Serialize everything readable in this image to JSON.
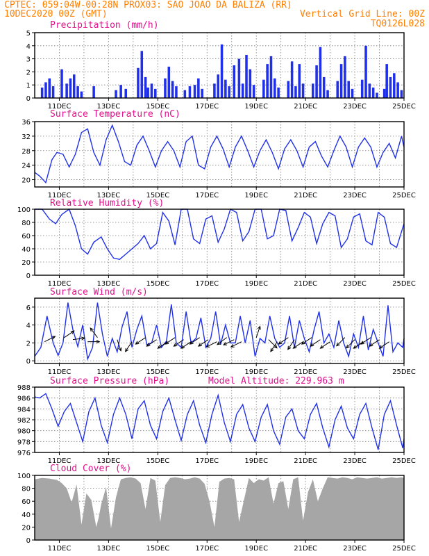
{
  "header": {
    "line1_left": "CPTEC:  059:04W-00:28N  PROX03: SAO JOAO DA BALIZA (RR)",
    "line2_left": "10DEC2020 00Z (GMT)",
    "line2_right": "Vertical Grid Line: 00Z",
    "line3_right": "TQ0126L028"
  },
  "colors": {
    "header_text": "#ff7f00",
    "panel_title": "#e0108a",
    "series_line": "#2030e8",
    "cloud_fill": "#a6a6a6",
    "wind_arrow": "#000000"
  },
  "chart_data": [
    {
      "type": "bar",
      "title": "Precipitation (mm/h)",
      "x_tick_labels": [
        "11DEC",
        "13DEC",
        "15DEC",
        "17DEC",
        "19DEC",
        "21DEC",
        "23DEC",
        "25DEC"
      ],
      "x_range_days": [
        10,
        25
      ],
      "ylim": [
        0,
        5
      ],
      "y_ticks": [
        0,
        1,
        2,
        3,
        4,
        5
      ],
      "x": [
        10.3,
        10.45,
        10.6,
        10.75,
        11.1,
        11.3,
        11.45,
        11.6,
        11.75,
        11.9,
        12.4,
        13.3,
        13.5,
        13.7,
        14.2,
        14.35,
        14.5,
        14.6,
        14.75,
        14.9,
        15.3,
        15.45,
        15.6,
        15.75,
        16.1,
        16.3,
        16.5,
        16.65,
        16.8,
        17.3,
        17.45,
        17.6,
        17.75,
        17.9,
        18.1,
        18.3,
        18.45,
        18.6,
        18.75,
        18.9,
        19.3,
        19.45,
        19.6,
        19.75,
        19.9,
        20.3,
        20.45,
        20.6,
        20.75,
        20.9,
        21.3,
        21.45,
        21.6,
        21.75,
        21.9,
        22.3,
        22.45,
        22.6,
        22.75,
        22.9,
        23.3,
        23.45,
        23.6,
        23.75,
        23.9,
        24.2,
        24.3,
        24.45,
        24.6,
        24.75,
        24.9
      ],
      "values": [
        0.8,
        1.2,
        1.5,
        0.9,
        2.2,
        1.1,
        1.5,
        1.8,
        0.9,
        0.5,
        0.9,
        0.6,
        1.0,
        0.7,
        2.3,
        3.6,
        1.6,
        0.8,
        1.1,
        0.7,
        1.5,
        2.4,
        1.3,
        0.9,
        0.6,
        0.9,
        1.0,
        1.5,
        0.7,
        1.1,
        1.8,
        4.1,
        1.4,
        0.9,
        2.5,
        3.0,
        1.1,
        3.3,
        2.2,
        1.0,
        1.4,
        2.6,
        3.2,
        1.5,
        0.8,
        1.3,
        2.8,
        0.9,
        2.6,
        1.1,
        1.1,
        2.5,
        3.9,
        1.6,
        0.6,
        1.3,
        2.6,
        3.2,
        1.3,
        0.7,
        1.4,
        4.0,
        1.1,
        0.8,
        0.4,
        0.7,
        2.6,
        1.6,
        1.9,
        1.2,
        0.6
      ]
    },
    {
      "type": "line",
      "title": "Surface Temperature (nC)",
      "x_tick_labels": [
        "11DEC",
        "13DEC",
        "15DEC",
        "17DEC",
        "19DEC",
        "21DEC",
        "23DEC",
        "25DEC"
      ],
      "x_range_days": [
        10,
        25
      ],
      "ylim": [
        18,
        36
      ],
      "y_ticks": [
        20,
        24,
        28,
        32,
        36
      ],
      "x": [
        10.0,
        10.2,
        10.45,
        10.7,
        10.9,
        11.15,
        11.4,
        11.65,
        11.9,
        12.15,
        12.4,
        12.65,
        12.9,
        13.15,
        13.4,
        13.65,
        13.9,
        14.15,
        14.4,
        14.65,
        14.9,
        15.15,
        15.4,
        15.65,
        15.9,
        16.15,
        16.4,
        16.65,
        16.9,
        17.15,
        17.4,
        17.65,
        17.9,
        18.15,
        18.4,
        18.65,
        18.9,
        19.15,
        19.4,
        19.65,
        19.9,
        20.15,
        20.4,
        20.65,
        20.9,
        21.15,
        21.4,
        21.65,
        21.9,
        22.15,
        22.4,
        22.65,
        22.9,
        23.15,
        23.4,
        23.65,
        23.9,
        24.15,
        24.4,
        24.65,
        24.9,
        25.0
      ],
      "y": [
        22.0,
        21.0,
        19.2,
        25.5,
        27.5,
        27.0,
        23.5,
        27.0,
        33.0,
        34.0,
        27.5,
        24.0,
        31.0,
        35.0,
        30.5,
        25.0,
        24.0,
        29.5,
        32.0,
        28.0,
        23.5,
        28.0,
        30.5,
        28.0,
        23.5,
        30.5,
        32.0,
        24.0,
        23.0,
        29.0,
        32.0,
        28.5,
        23.5,
        29.0,
        32.0,
        28.0,
        23.5,
        28.0,
        31.0,
        27.5,
        23.0,
        28.5,
        31.0,
        28.0,
        23.5,
        29.0,
        30.5,
        26.5,
        23.5,
        28.0,
        32.0,
        29.0,
        23.5,
        29.0,
        31.5,
        29.0,
        23.5,
        27.5,
        30.0,
        26.0,
        32.0,
        29.0
      ]
    },
    {
      "type": "line",
      "title": "Relative Humidity (%)",
      "x_tick_labels": [
        "11DEC",
        "13DEC",
        "15DEC",
        "17DEC",
        "19DEC",
        "21DEC",
        "23DEC",
        "25DEC"
      ],
      "x_range_days": [
        10,
        25
      ],
      "ylim": [
        0,
        100
      ],
      "y_ticks": [
        0,
        20,
        40,
        60,
        80,
        100
      ],
      "x": [
        10.0,
        10.3,
        10.6,
        10.85,
        11.1,
        11.4,
        11.65,
        11.9,
        12.15,
        12.4,
        12.7,
        12.95,
        13.2,
        13.45,
        13.7,
        13.95,
        14.2,
        14.45,
        14.7,
        14.95,
        15.2,
        15.45,
        15.7,
        15.95,
        16.2,
        16.45,
        16.7,
        16.95,
        17.2,
        17.45,
        17.7,
        17.95,
        18.2,
        18.45,
        18.7,
        18.95,
        19.2,
        19.45,
        19.7,
        19.95,
        20.2,
        20.45,
        20.7,
        20.95,
        21.2,
        21.45,
        21.7,
        21.95,
        22.2,
        22.45,
        22.7,
        22.95,
        23.2,
        23.45,
        23.7,
        23.95,
        24.2,
        24.45,
        24.7,
        24.95,
        25.0
      ],
      "y": [
        100,
        100,
        85,
        78,
        92,
        100,
        75,
        40,
        32,
        50,
        58,
        40,
        26,
        24,
        32,
        40,
        48,
        60,
        40,
        48,
        95,
        82,
        46,
        100,
        100,
        55,
        48,
        85,
        90,
        50,
        70,
        100,
        95,
        52,
        66,
        100,
        100,
        55,
        60,
        100,
        98,
        52,
        72,
        95,
        88,
        48,
        78,
        95,
        90,
        42,
        55,
        88,
        93,
        52,
        46,
        95,
        88,
        48,
        42,
        72,
        78
      ]
    },
    {
      "type": "line",
      "title": "Surface Wind (m/s)",
      "x_tick_labels": [
        "11DEC",
        "13DEC",
        "15DEC",
        "17DEC",
        "19DEC",
        "21DEC",
        "23DEC",
        "25DEC"
      ],
      "x_range_days": [
        10,
        25
      ],
      "ylim": [
        -0.3,
        7
      ],
      "y_ticks": [
        0,
        2,
        4,
        6
      ],
      "x": [
        10.0,
        10.25,
        10.5,
        10.75,
        10.95,
        11.15,
        11.35,
        11.55,
        11.75,
        11.95,
        12.15,
        12.35,
        12.55,
        12.75,
        12.95,
        13.15,
        13.35,
        13.55,
        13.75,
        13.95,
        14.15,
        14.35,
        14.55,
        14.75,
        14.95,
        15.15,
        15.35,
        15.55,
        15.75,
        15.95,
        16.15,
        16.35,
        16.55,
        16.75,
        16.95,
        17.15,
        17.35,
        17.55,
        17.75,
        17.95,
        18.15,
        18.35,
        18.55,
        18.75,
        18.95,
        19.15,
        19.35,
        19.55,
        19.75,
        19.95,
        20.15,
        20.35,
        20.55,
        20.75,
        20.95,
        21.15,
        21.35,
        21.55,
        21.75,
        21.95,
        22.15,
        22.35,
        22.55,
        22.75,
        22.95,
        23.15,
        23.35,
        23.55,
        23.75,
        23.95,
        24.15,
        24.35,
        24.55,
        24.75,
        24.95,
        25.0
      ],
      "y": [
        0.5,
        1.5,
        5.0,
        2.0,
        0.6,
        2.0,
        6.5,
        3.5,
        1.6,
        4.0,
        0.2,
        1.5,
        6.5,
        3.0,
        0.5,
        2.5,
        1.0,
        3.8,
        5.5,
        1.5,
        3.5,
        5.0,
        1.8,
        2.0,
        4.0,
        1.5,
        2.2,
        6.3,
        2.0,
        1.5,
        5.5,
        2.0,
        2.5,
        4.8,
        1.5,
        2.5,
        5.5,
        1.8,
        4.0,
        2.0,
        2.0,
        5.0,
        2.0,
        4.5,
        0.5,
        2.5,
        2.0,
        5.0,
        2.5,
        1.5,
        2.0,
        5.0,
        1.5,
        4.5,
        2.5,
        1.0,
        3.5,
        5.5,
        2.0,
        3.0,
        1.5,
        4.5,
        2.0,
        0.5,
        3.0,
        1.5,
        5.0,
        1.2,
        3.5,
        2.0,
        0.5,
        6.2,
        1.0,
        2.0,
        1.5,
        2.5
      ],
      "wind_vectors": {
        "x": [
          10.4,
          11.2,
          11.55,
          12.15,
          12.55,
          13.35,
          13.95,
          14.5,
          14.95,
          15.4,
          15.7,
          16.05,
          16.35,
          16.7,
          17.05,
          17.4,
          17.8,
          18.1,
          18.4,
          19.0,
          19.5,
          19.85,
          20.3,
          20.55,
          20.9,
          21.25,
          21.6,
          22.0,
          22.6,
          23.0,
          23.35,
          23.65,
          24.0,
          24.4
        ],
        "u": [
          3,
          3,
          4,
          3,
          -1.5,
          1,
          -2,
          -3,
          -3,
          -3,
          -3,
          -3,
          -3,
          -3,
          -3,
          -3,
          -2,
          -3,
          -3,
          0.5,
          1.5,
          -2,
          -3,
          -2,
          -3,
          -3,
          -3,
          -3,
          -2,
          -2,
          -3,
          -3,
          -3,
          -3
        ],
        "v": [
          1.5,
          2,
          0.5,
          0,
          2,
          -3,
          -3,
          -2,
          -2,
          -2,
          -2,
          -2,
          -2,
          -2,
          -2,
          -1.5,
          -1.5,
          -1.5,
          -1.5,
          1.5,
          -1.5,
          -3,
          -2,
          -3,
          -2,
          -2,
          -2,
          -2,
          -2,
          -2,
          -2,
          -2,
          -2,
          -2
        ]
      }
    },
    {
      "type": "line",
      "title": "Surface Pressure (hPa)",
      "annotation": "Model Altitude: 229.963 m",
      "x_tick_labels": [
        "11DEC",
        "13DEC",
        "15DEC",
        "17DEC",
        "19DEC",
        "21DEC",
        "23DEC",
        "25DEC"
      ],
      "x_range_days": [
        10,
        25
      ],
      "ylim": [
        976,
        988
      ],
      "y_ticks": [
        976,
        978,
        980,
        982,
        984,
        986,
        988
      ],
      "x": [
        10.0,
        10.2,
        10.45,
        10.7,
        10.95,
        11.2,
        11.45,
        11.7,
        11.95,
        12.2,
        12.45,
        12.7,
        12.95,
        13.2,
        13.45,
        13.7,
        13.95,
        14.2,
        14.45,
        14.7,
        14.95,
        15.2,
        15.45,
        15.7,
        15.95,
        16.2,
        16.45,
        16.7,
        16.95,
        17.2,
        17.45,
        17.7,
        17.95,
        18.2,
        18.45,
        18.7,
        18.95,
        19.2,
        19.45,
        19.7,
        19.95,
        20.2,
        20.45,
        20.7,
        20.95,
        21.2,
        21.45,
        21.7,
        21.95,
        22.2,
        22.45,
        22.7,
        22.95,
        23.2,
        23.45,
        23.7,
        23.95,
        24.2,
        24.45,
        24.7,
        24.95,
        25.0
      ],
      "y": [
        986.2,
        986.0,
        986.8,
        984.0,
        980.8,
        983.5,
        985.0,
        981.5,
        978.0,
        983.5,
        986.0,
        981.0,
        977.8,
        983.0,
        986.0,
        983.0,
        978.5,
        984.0,
        985.5,
        981.0,
        978.5,
        983.5,
        986.0,
        982.0,
        978.2,
        983.0,
        985.5,
        981.0,
        977.8,
        983.0,
        986.5,
        981.5,
        978.0,
        983.0,
        984.8,
        980.5,
        978.0,
        982.5,
        984.8,
        980.0,
        977.5,
        982.5,
        984.0,
        980.0,
        978.5,
        983.0,
        985.0,
        980.5,
        977.0,
        982.0,
        984.5,
        980.5,
        978.5,
        983.0,
        985.0,
        980.5,
        976.5,
        983.0,
        985.5,
        981.0,
        976.8,
        978.5
      ]
    },
    {
      "type": "area",
      "title": "Cloud Cover (%)",
      "x_tick_labels": [
        "11DEC",
        "13DEC",
        "15DEC",
        "17DEC",
        "19DEC",
        "21DEC",
        "23DEC",
        "25DEC"
      ],
      "x_range_days": [
        10,
        25
      ],
      "ylim": [
        0,
        100
      ],
      "y_ticks": [
        0,
        20,
        40,
        60,
        80,
        100
      ],
      "x": [
        10.0,
        10.3,
        10.6,
        10.9,
        11.1,
        11.3,
        11.5,
        11.7,
        11.9,
        12.1,
        12.3,
        12.5,
        12.6,
        12.7,
        12.9,
        13.1,
        13.3,
        13.5,
        13.7,
        13.9,
        14.1,
        14.3,
        14.5,
        14.7,
        14.9,
        15.1,
        15.3,
        15.5,
        15.7,
        15.9,
        16.1,
        16.3,
        16.5,
        16.7,
        16.9,
        17.1,
        17.3,
        17.5,
        17.7,
        17.9,
        18.1,
        18.3,
        18.5,
        18.7,
        18.9,
        19.1,
        19.3,
        19.5,
        19.7,
        19.9,
        20.1,
        20.3,
        20.5,
        20.7,
        20.9,
        21.1,
        21.3,
        21.5,
        21.7,
        21.9,
        22.1,
        22.3,
        22.5,
        22.7,
        22.9,
        23.1,
        23.3,
        23.5,
        23.7,
        23.9,
        24.1,
        24.3,
        24.5,
        24.7,
        24.9,
        25.0
      ],
      "y": [
        94,
        96,
        95,
        93,
        88,
        80,
        58,
        86,
        24,
        72,
        62,
        20,
        35,
        55,
        82,
        18,
        66,
        94,
        96,
        97,
        95,
        88,
        48,
        96,
        92,
        28,
        85,
        96,
        97,
        96,
        94,
        95,
        97,
        95,
        87,
        60,
        20,
        90,
        95,
        96,
        94,
        28,
        62,
        96,
        88,
        94,
        92,
        97,
        56,
        88,
        91,
        48,
        94,
        97,
        30,
        74,
        94,
        60,
        80,
        97,
        96,
        95,
        97,
        96,
        94,
        97,
        96,
        95,
        96,
        97,
        95,
        96,
        97,
        96,
        97,
        96
      ]
    }
  ]
}
